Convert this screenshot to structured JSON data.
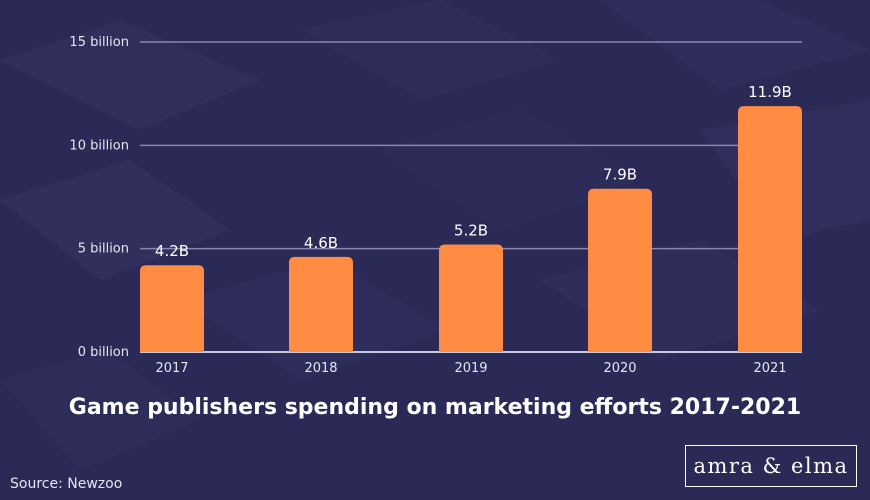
{
  "colors": {
    "background": "#2b2956",
    "bar": "#ff8c42",
    "grid": "#8886b0",
    "text": "#ffffff"
  },
  "chart_data": {
    "type": "bar",
    "title": "Game publishers spending on marketing efforts 2017-2021",
    "categories": [
      "2017",
      "2018",
      "2019",
      "2020",
      "2021"
    ],
    "values": [
      4.2,
      4.6,
      5.2,
      7.9,
      11.9
    ],
    "data_labels": [
      "4.2B",
      "4.6B",
      "5.2B",
      "7.9B",
      "11.9B"
    ],
    "y_ticks": [
      0,
      5,
      10,
      15
    ],
    "y_tick_labels": [
      "0 billion",
      "5 billion",
      "10 billion",
      "15 billion"
    ],
    "ylim": [
      0,
      15
    ],
    "grid": true,
    "legend": "none"
  },
  "footer": {
    "source": "Source: Newzoo",
    "logo_text": "amra & elma"
  }
}
